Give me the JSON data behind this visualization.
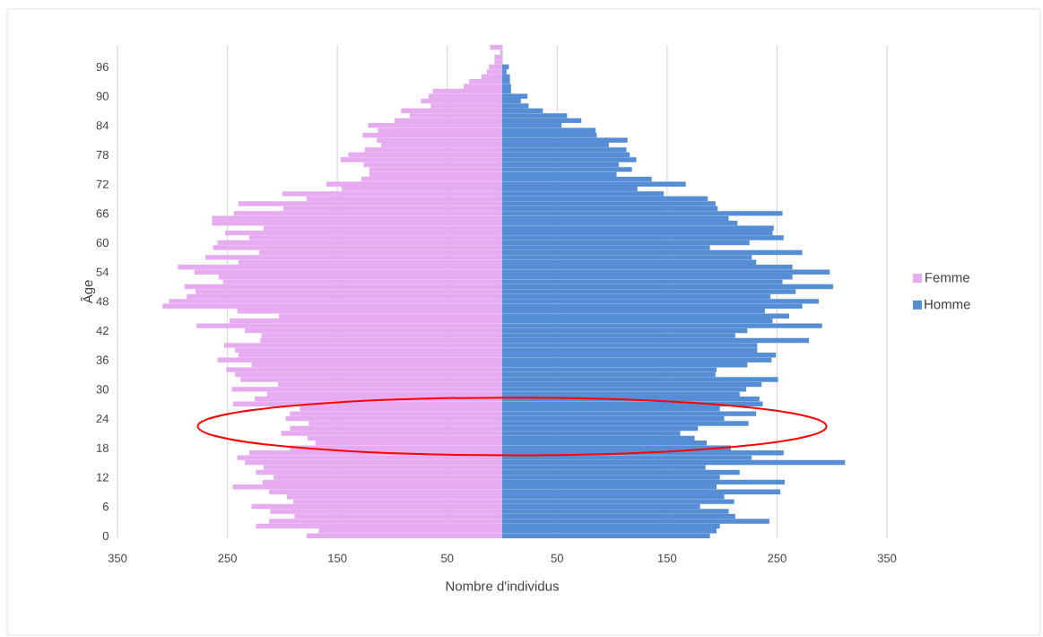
{
  "chart_data": {
    "type": "bar",
    "orientation": "horizontal",
    "stacked": true,
    "xlabel": "Nombre d'individus",
    "ylabel": "Âge",
    "categories": [
      null,
      null,
      null,
      null,
      "96",
      null,
      null,
      null,
      null,
      null,
      "90",
      null,
      null,
      null,
      null,
      null,
      "84",
      null,
      null,
      null,
      null,
      null,
      "78",
      null,
      null,
      null,
      null,
      null,
      "72",
      null,
      null,
      null,
      null,
      null,
      "66",
      null,
      null,
      null,
      null,
      null,
      "60",
      null,
      null,
      null,
      null,
      null,
      "54",
      null,
      null,
      null,
      null,
      null,
      "48",
      null,
      null,
      null,
      null,
      null,
      "42",
      null,
      null,
      null,
      null,
      null,
      "36",
      null,
      null,
      null,
      null,
      null,
      "30",
      null,
      null,
      null,
      null,
      null,
      "24",
      null,
      null,
      null,
      null,
      null,
      "18",
      null,
      null,
      null,
      null,
      null,
      "12",
      null,
      null,
      null,
      null,
      null,
      "6",
      null,
      null,
      null,
      null,
      null,
      "0"
    ],
    "series": [
      {
        "name": "Femme",
        "color": "#e6abf0",
        "values": [
          -11,
          -2,
          -7,
          -7,
          -12,
          -14,
          -19,
          -30,
          -35,
          -63,
          -67,
          -74,
          -65,
          -92,
          -84,
          -98,
          -122,
          -113,
          -127,
          -114,
          -110,
          -125,
          -140,
          -147,
          -126,
          -121,
          -121,
          -128,
          -160,
          -146,
          -200,
          -178,
          -240,
          -199,
          -244,
          -264,
          -264,
          -217,
          -252,
          -230,
          -259,
          -263,
          -221,
          -270,
          -240,
          -295,
          -280,
          -258,
          -254,
          -289,
          -279,
          -287,
          -303,
          -309,
          -241,
          -203,
          -248,
          -278,
          -234,
          -219,
          -220,
          -253,
          -243,
          -240,
          -259,
          -228,
          -251,
          -243,
          -238,
          -204,
          -246,
          -214,
          -225,
          -245,
          -184,
          -193,
          -197,
          -176,
          -193,
          -201,
          -177,
          -170,
          -193,
          -230,
          -241,
          -234,
          -217,
          -224,
          -208,
          -218,
          -245,
          -212,
          -196,
          -190,
          -228,
          -211,
          -189,
          -212,
          -224,
          -167,
          -178
        ]
      },
      {
        "name": "Homme",
        "color": "#558ed5",
        "values": [
          0,
          0,
          0,
          0,
          6,
          4,
          7,
          7,
          8,
          8,
          23,
          17,
          24,
          37,
          59,
          72,
          54,
          85,
          86,
          114,
          97,
          113,
          116,
          122,
          106,
          118,
          104,
          136,
          167,
          123,
          147,
          187,
          194,
          196,
          255,
          206,
          214,
          247,
          246,
          256,
          225,
          189,
          273,
          227,
          231,
          264,
          298,
          264,
          255,
          301,
          267,
          244,
          288,
          273,
          239,
          261,
          246,
          291,
          223,
          212,
          279,
          232,
          232,
          249,
          245,
          223,
          195,
          194,
          251,
          236,
          222,
          216,
          234,
          237,
          198,
          231,
          202,
          224,
          178,
          162,
          175,
          186,
          208,
          256,
          227,
          312,
          185,
          216,
          198,
          257,
          195,
          253,
          202,
          211,
          180,
          206,
          212,
          243,
          198,
          195,
          189
        ]
      }
    ],
    "xlim": [
      -350,
      350
    ],
    "xticks": [
      {
        "value": -350,
        "label": "350"
      },
      {
        "value": -250,
        "label": "250"
      },
      {
        "value": -150,
        "label": "150"
      },
      {
        "value": -50,
        "label": "50"
      },
      50,
      150,
      250,
      350
    ],
    "grid": "x",
    "legend": "right"
  }
}
